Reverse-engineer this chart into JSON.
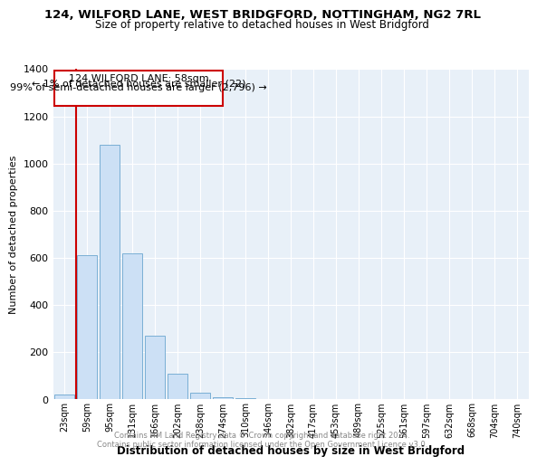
{
  "title_line1": "124, WILFORD LANE, WEST BRIDGFORD, NOTTINGHAM, NG2 7RL",
  "title_line2": "Size of property relative to detached houses in West Bridgford",
  "xlabel": "Distribution of detached houses by size in West Bridgford",
  "ylabel": "Number of detached properties",
  "categories": [
    "23sqm",
    "59sqm",
    "95sqm",
    "131sqm",
    "166sqm",
    "202sqm",
    "238sqm",
    "274sqm",
    "310sqm",
    "346sqm",
    "382sqm",
    "417sqm",
    "453sqm",
    "489sqm",
    "525sqm",
    "561sqm",
    "597sqm",
    "632sqm",
    "668sqm",
    "704sqm",
    "740sqm"
  ],
  "values": [
    22,
    610,
    1080,
    620,
    270,
    110,
    30,
    10,
    5,
    2,
    1,
    0,
    0,
    0,
    0,
    0,
    0,
    0,
    0,
    0,
    0
  ],
  "bar_color": "#cce0f5",
  "bar_edge_color": "#7aafd4",
  "annotation_text1": "124 WILFORD LANE: 58sqm",
  "annotation_text2": "← 1% of detached houses are smaller (22)",
  "annotation_text3": "99% of semi-detached houses are larger (2,796) →",
  "annotation_box_color": "#ffffff",
  "annotation_border_color": "#cc0000",
  "vline_color": "#cc0000",
  "footer_line1": "Contains HM Land Registry data © Crown copyright and database right 2024.",
  "footer_line2": "Contains public sector information licensed under the Open Government Licence v3.0.",
  "background_color": "#e8f0f8",
  "ylim": [
    0,
    1400
  ],
  "yticks": [
    0,
    200,
    400,
    600,
    800,
    1000,
    1200,
    1400
  ]
}
